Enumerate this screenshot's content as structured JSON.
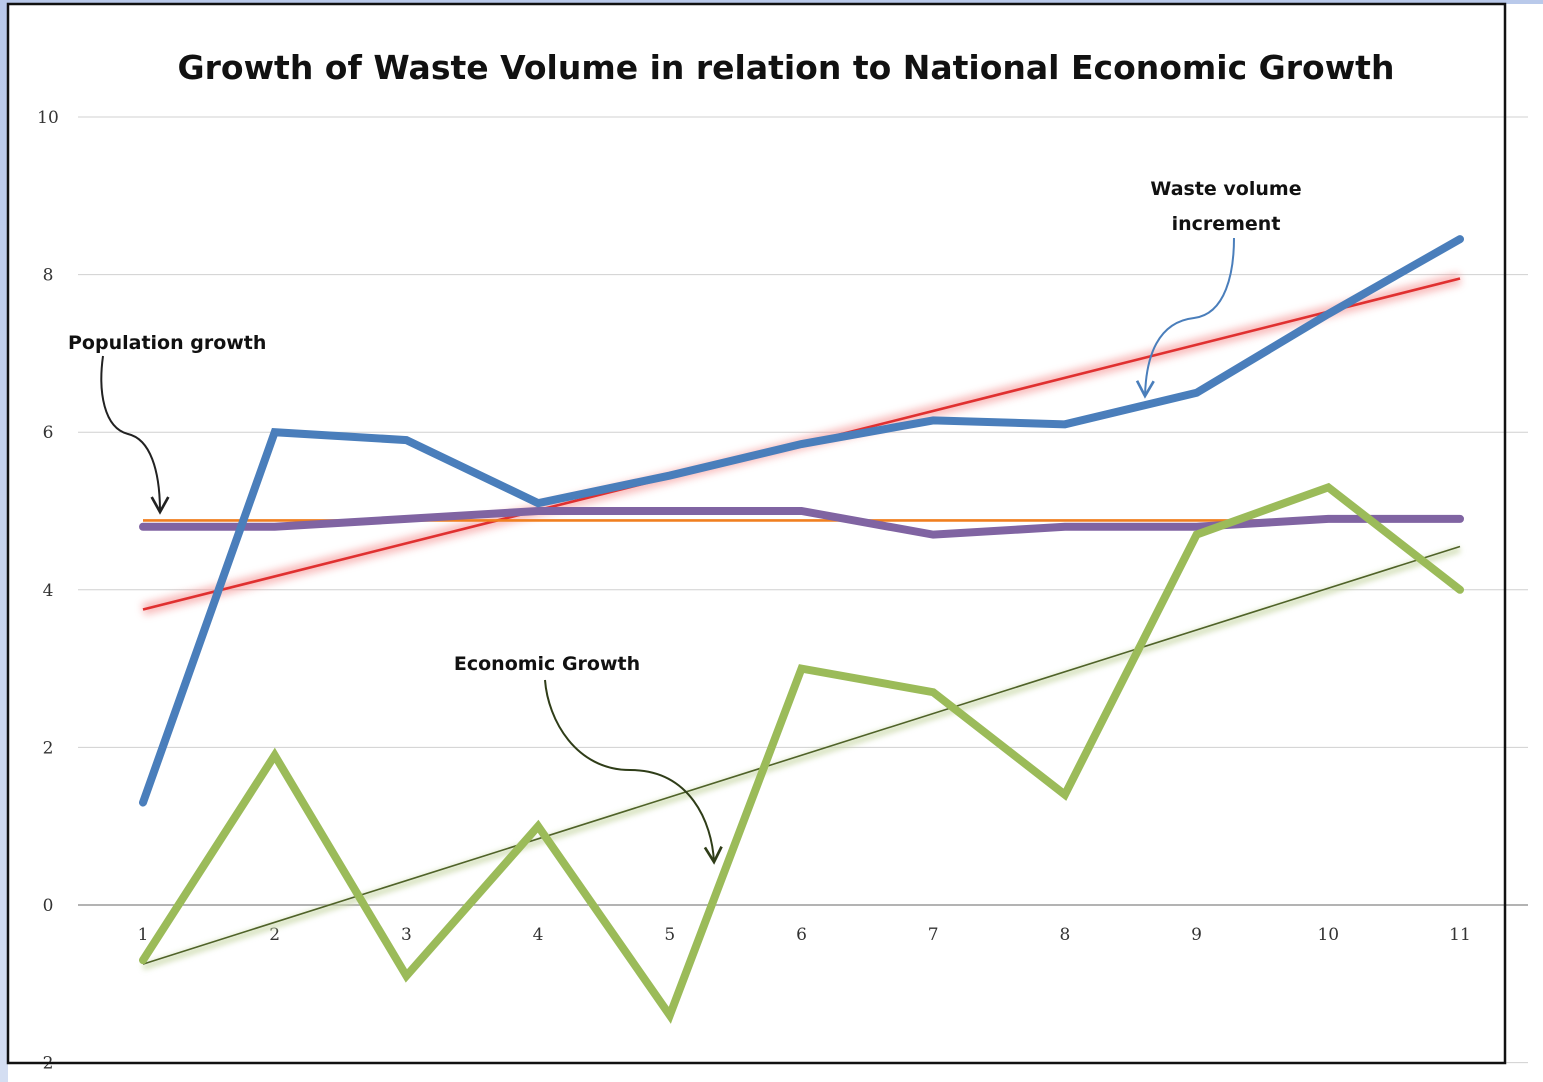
{
  "chart_data": {
    "type": "line",
    "title": "Growth of Waste Volume in relation to National Economic Growth",
    "xlabel": "",
    "ylabel": "",
    "x": [
      1,
      2,
      3,
      4,
      5,
      6,
      7,
      8,
      9,
      10,
      11
    ],
    "x_tick_labels": [
      "1",
      "2",
      "3",
      "4",
      "5",
      "6",
      "7",
      "8",
      "9",
      "10",
      "11"
    ],
    "y_tick_labels": [
      "10",
      "8",
      "6",
      "4",
      "2",
      "0",
      "2"
    ],
    "y_ticks": [
      10,
      8,
      6,
      4,
      2,
      0,
      -2
    ],
    "ylim": [
      -2,
      10
    ],
    "grid": true,
    "legend": "none",
    "series": [
      {
        "values": [
          1.3,
          6.0,
          5.9,
          5.1,
          5.45,
          5.85,
          6.15,
          6.1,
          6.5,
          7.5,
          8.45
        ],
        "color": "#4a7ebb"
      },
      {
        "values": [
          4.8,
          4.8,
          4.9,
          5.0,
          5.0,
          5.0,
          4.7,
          4.8,
          4.8,
          4.9,
          4.9
        ],
        "color": "#8064a2"
      },
      {
        "values": [
          -0.7,
          1.9,
          -0.9,
          1.0,
          -1.4,
          3.0,
          2.7,
          1.4,
          4.7,
          5.3,
          4.0
        ],
        "color": "#9bbb59"
      }
    ],
    "trendlines": [
      {
        "start": [
          1,
          3.75
        ],
        "end": [
          11,
          7.95
        ],
        "color": "#e03030"
      },
      {
        "start": [
          1,
          4.88
        ],
        "end": [
          11,
          4.88
        ],
        "color": "#f07f1f"
      },
      {
        "start": [
          1,
          -0.75
        ],
        "end": [
          11,
          4.55
        ],
        "color": "#4f6228"
      }
    ],
    "annotations": [
      {
        "text": "Population growth"
      },
      {
        "text": "Waste volume"
      },
      {
        "text": "increment"
      },
      {
        "text": "Economic Growth"
      }
    ]
  }
}
